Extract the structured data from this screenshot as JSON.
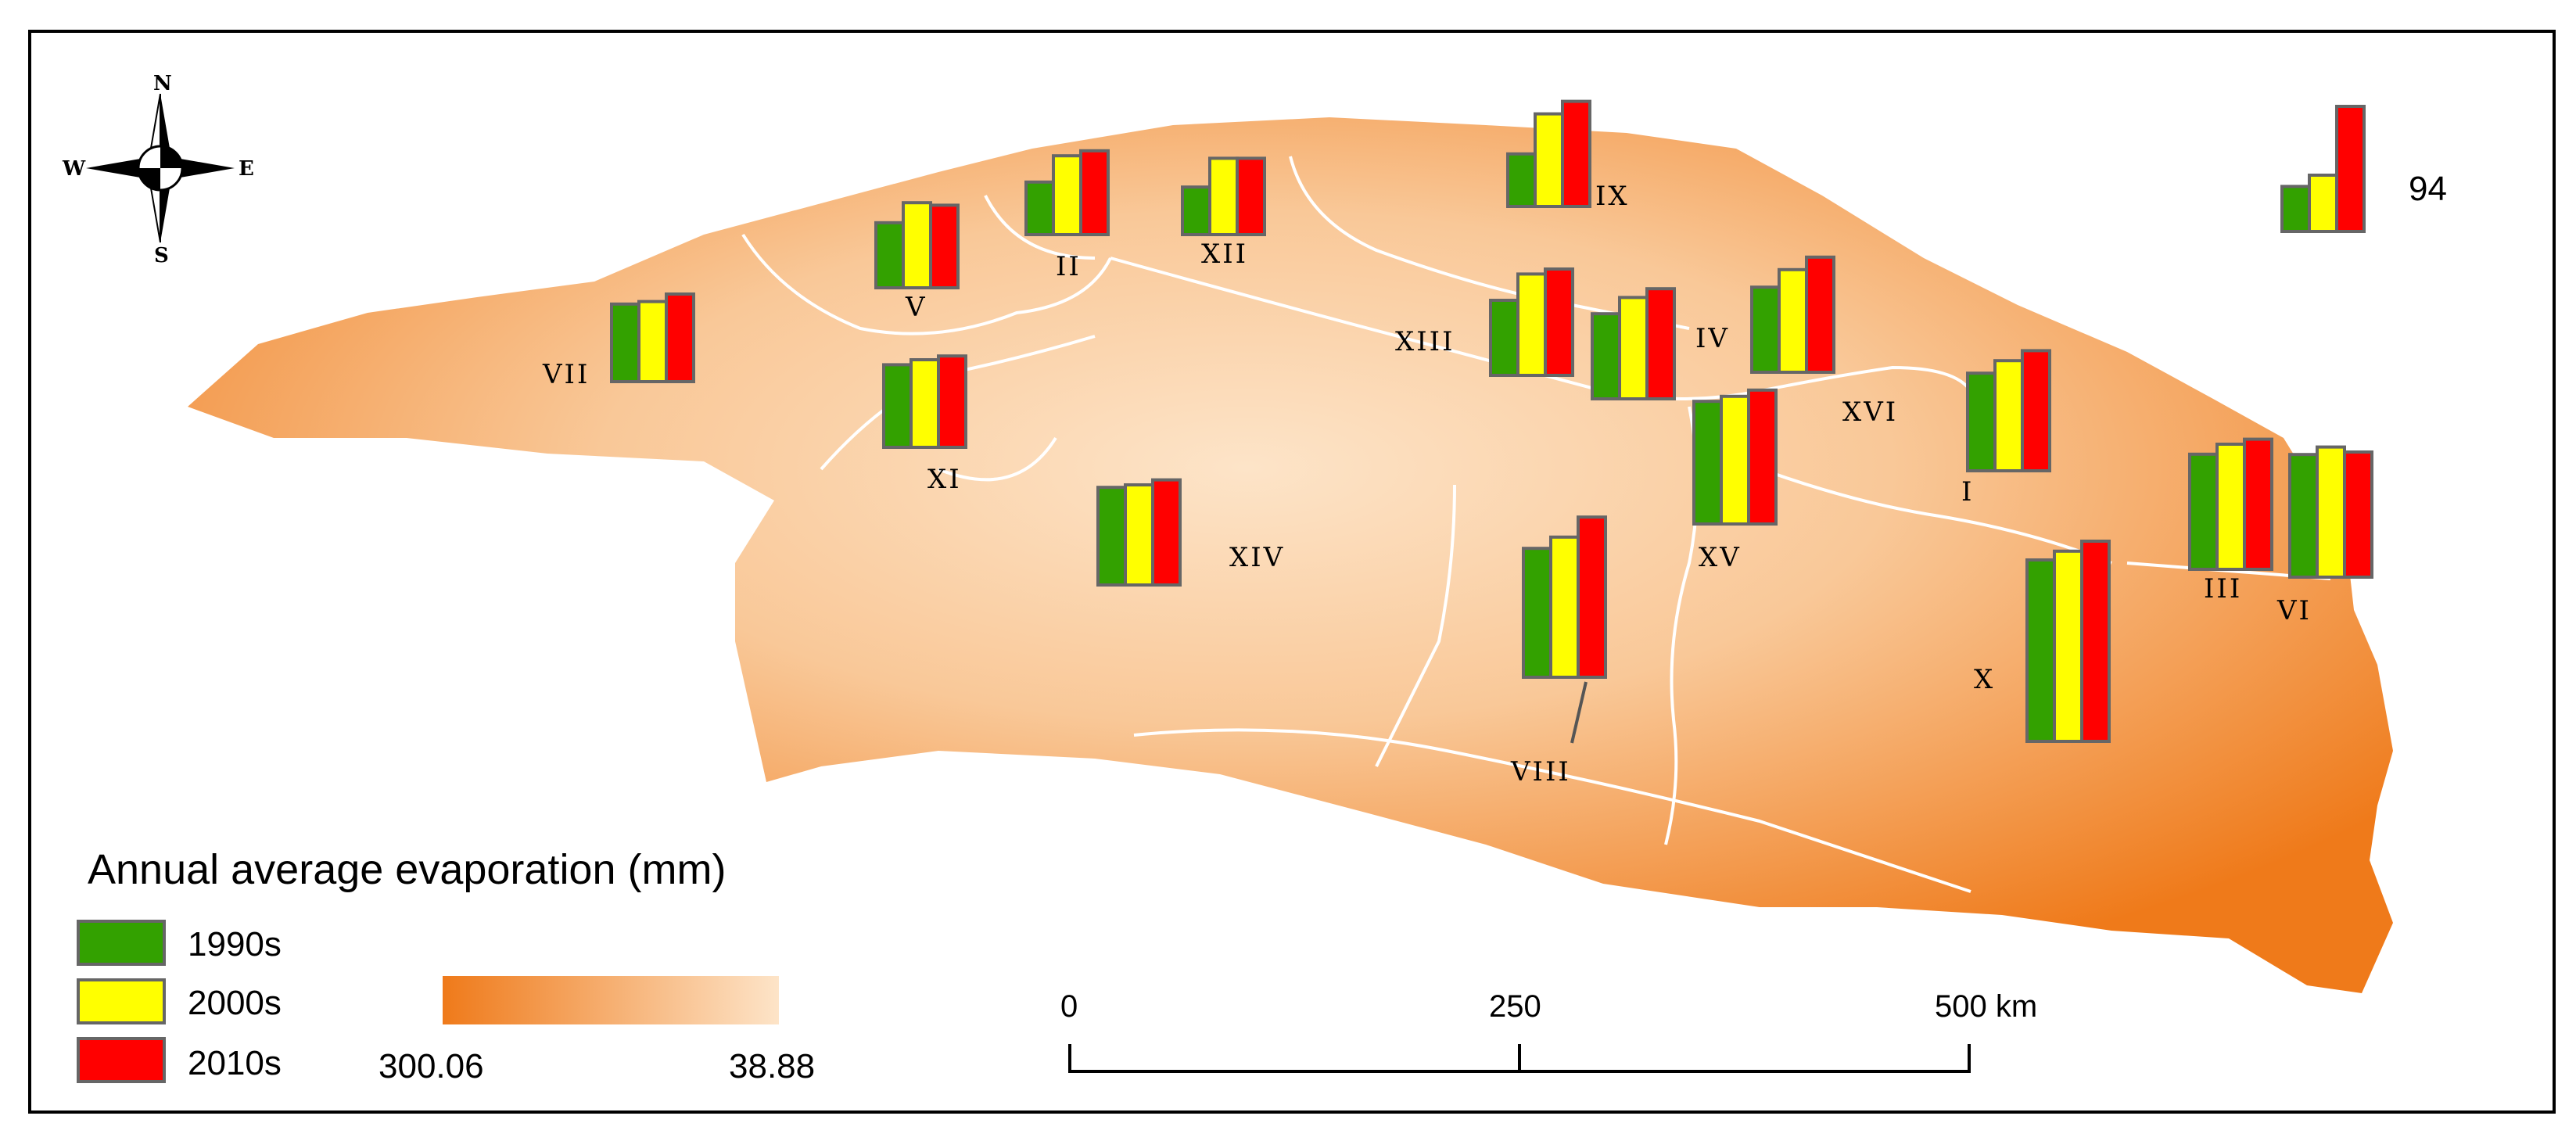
{
  "legend": {
    "title": "Annual average evaporation (mm)",
    "items": [
      {
        "label": "1990s",
        "color": "#33a100"
      },
      {
        "label": "2000s",
        "color": "#ffff00"
      },
      {
        "label": "2010s",
        "color": "#ff0000"
      }
    ],
    "gradient": {
      "min_label": "300.06",
      "max_label": "38.88",
      "color_high": "#ef7a1a",
      "color_low": "#fde4c8"
    }
  },
  "reference_bar_label": "94",
  "scale_bar": {
    "ticks": [
      "0",
      "250",
      "500 km"
    ]
  },
  "compass": {
    "n": "N",
    "s": "S",
    "e": "E",
    "w": "W"
  },
  "regions": [
    {
      "id": "I",
      "label": "I",
      "values": [
        0.78,
        0.88,
        0.96
      ]
    },
    {
      "id": "II",
      "label": "II",
      "values": [
        0.42,
        0.63,
        0.67
      ]
    },
    {
      "id": "III",
      "label": "III",
      "values": [
        0.92,
        1.0,
        1.04
      ]
    },
    {
      "id": "IV",
      "label": "IV",
      "values": [
        0.68,
        0.81,
        0.88
      ]
    },
    {
      "id": "V",
      "label": "V",
      "values": [
        0.52,
        0.68,
        0.66
      ]
    },
    {
      "id": "VI",
      "label": "VI",
      "values": [
        0.98,
        1.04,
        1.0
      ]
    },
    {
      "id": "VII",
      "label": "VII",
      "values": [
        0.62,
        0.64,
        0.7
      ]
    },
    {
      "id": "VIII",
      "label": "VIII",
      "values": [
        1.03,
        1.12,
        1.28
      ]
    },
    {
      "id": "IX",
      "label": "IX",
      "values": [
        0.42,
        0.74,
        0.84
      ]
    },
    {
      "id": "X",
      "label": "X",
      "values": [
        1.45,
        1.52,
        1.6
      ]
    },
    {
      "id": "XI",
      "label": "XI",
      "values": [
        0.66,
        0.7,
        0.73
      ]
    },
    {
      "id": "XII",
      "label": "XII",
      "values": [
        0.38,
        0.61,
        0.61
      ]
    },
    {
      "id": "XIII",
      "label": "XIII",
      "values": [
        0.6,
        0.81,
        0.85
      ]
    },
    {
      "id": "XIV",
      "label": "XIV",
      "values": [
        0.78,
        0.8,
        0.84
      ]
    },
    {
      "id": "XV",
      "label": "XV",
      "values": [
        0.98,
        1.02,
        1.07
      ]
    },
    {
      "id": "XVI",
      "label": "XVI",
      "values": [
        0.68,
        0.82,
        0.92
      ]
    }
  ],
  "reference_values": [
    0.36,
    0.45,
    1.0
  ]
}
